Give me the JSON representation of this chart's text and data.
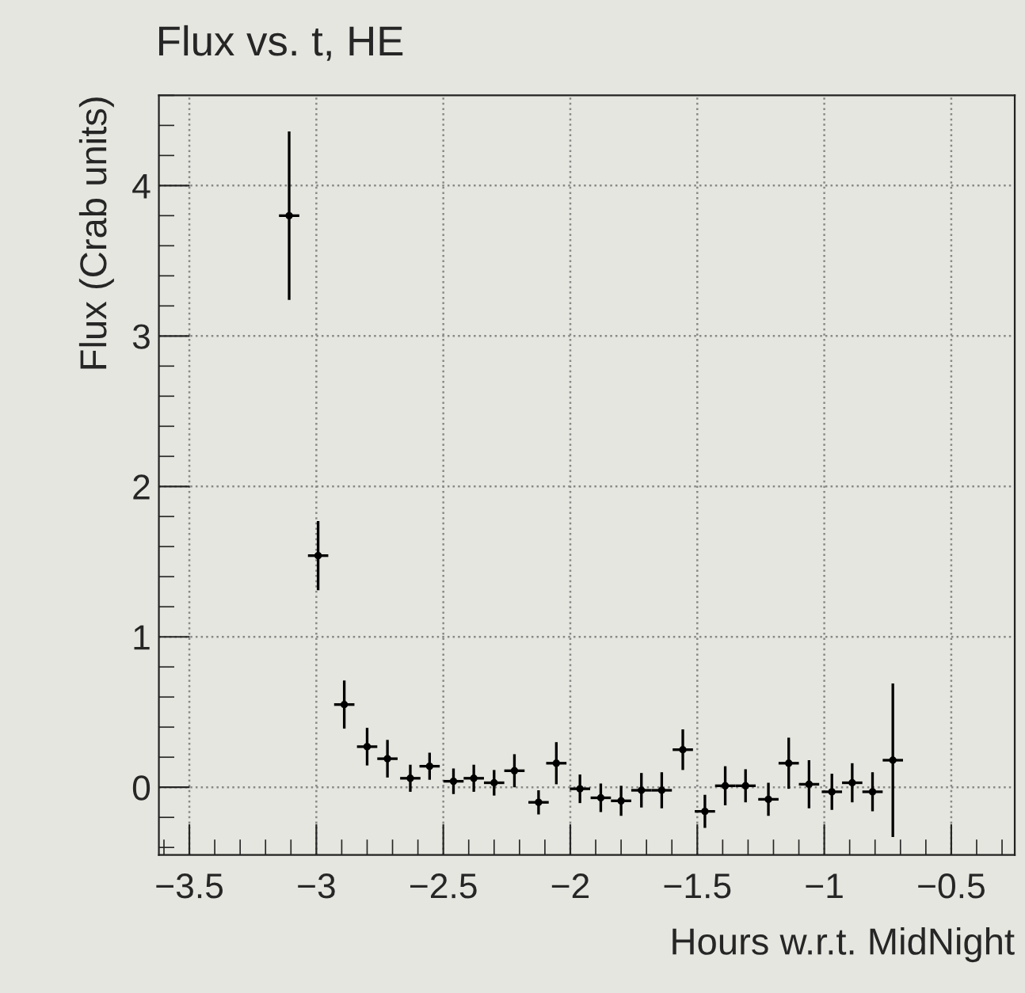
{
  "chart_data": {
    "type": "scatter",
    "title": "Flux vs. t, HE",
    "xlabel": "Hours w.r.t. MidNight",
    "ylabel": "Flux (Crab units)",
    "x": [
      -3.107,
      -2.993,
      -2.89,
      -2.8,
      -2.72,
      -2.63,
      -2.554,
      -2.46,
      -2.38,
      -2.3,
      -2.22,
      -2.125,
      -2.055,
      -1.962,
      -1.88,
      -1.8,
      -1.72,
      -1.64,
      -1.557,
      -1.47,
      -1.39,
      -1.31,
      -1.22,
      -1.14,
      -1.06,
      -0.97,
      -0.89,
      -0.81,
      -0.73
    ],
    "series": [
      {
        "color": "#000000",
        "values": [
          3.8,
          1.54,
          0.55,
          0.27,
          0.19,
          0.06,
          0.14,
          0.04,
          0.06,
          0.03,
          0.11,
          -0.1,
          0.16,
          -0.01,
          -0.07,
          -0.09,
          -0.02,
          -0.02,
          0.25,
          -0.16,
          0.01,
          0.01,
          -0.08,
          0.16,
          0.02,
          -0.03,
          0.03,
          -0.03,
          0.18
        ],
        "errors": [
          0.56,
          0.23,
          0.16,
          0.125,
          0.125,
          0.09,
          0.09,
          0.085,
          0.09,
          0.085,
          0.11,
          0.08,
          0.14,
          0.095,
          0.095,
          0.1,
          0.115,
          0.12,
          0.135,
          0.11,
          0.13,
          0.11,
          0.11,
          0.17,
          0.16,
          0.12,
          0.13,
          0.13,
          0.51
        ],
        "xerrors": [
          0.04,
          0.04,
          0.04,
          0.04,
          0.04,
          0.04,
          0.04,
          0.04,
          0.04,
          0.04,
          0.04,
          0.04,
          0.04,
          0.04,
          0.04,
          0.04,
          0.04,
          0.04,
          0.04,
          0.04,
          0.04,
          0.04,
          0.04,
          0.04,
          0.04,
          0.04,
          0.04,
          0.04,
          0.04
        ]
      }
    ],
    "grid": true,
    "xlim": [
      -3.62,
      -0.25
    ],
    "ylim": [
      -0.45,
      4.6
    ],
    "xticks": [
      {
        "value": -3.5,
        "label": "−3.5"
      },
      {
        "value": -3,
        "label": "−3"
      },
      {
        "value": -2.5,
        "label": "−2.5"
      },
      {
        "value": -2,
        "label": "−2"
      },
      {
        "value": -1.5,
        "label": "−1.5"
      },
      {
        "value": -1,
        "label": "−1"
      },
      {
        "value": -0.5,
        "label": "−0.5"
      }
    ],
    "yticks": [
      0,
      1,
      2,
      3,
      4
    ]
  }
}
